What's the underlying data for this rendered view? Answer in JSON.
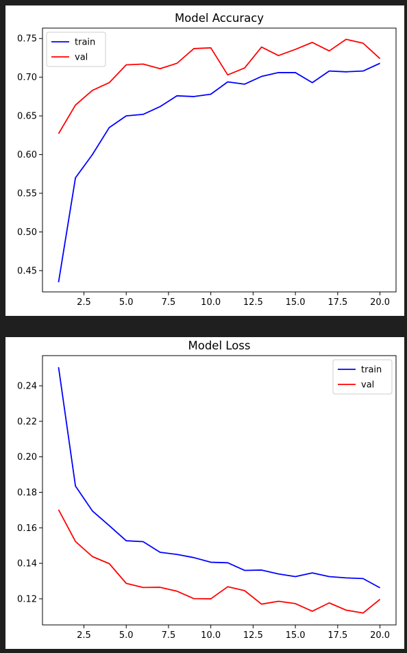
{
  "chart_data": [
    {
      "type": "line",
      "title": "Model Accuracy",
      "xlabel": "",
      "ylabel": "",
      "xlim": [
        0.05,
        20.95
      ],
      "ylim": [
        0.4225,
        0.7635
      ],
      "xticks": [
        2.5,
        5.0,
        7.5,
        10.0,
        12.5,
        15.0,
        17.5,
        20.0
      ],
      "yticks": [
        0.45,
        0.5,
        0.55,
        0.6,
        0.65,
        0.7,
        0.75
      ],
      "legend": "top-left",
      "grid": false,
      "x": [
        1,
        2,
        3,
        4,
        5,
        6,
        7,
        8,
        9,
        10,
        11,
        12,
        13,
        14,
        15,
        16,
        17,
        18,
        19,
        20
      ],
      "series": [
        {
          "name": "train",
          "color": "#0000ff",
          "values": [
            0.435,
            0.57,
            0.6,
            0.635,
            0.65,
            0.652,
            0.662,
            0.676,
            0.675,
            0.678,
            0.694,
            0.691,
            0.701,
            0.706,
            0.706,
            0.693,
            0.708,
            0.707,
            0.708,
            0.718
          ]
        },
        {
          "name": "val",
          "color": "#ff0000",
          "values": [
            0.627,
            0.664,
            0.683,
            0.693,
            0.716,
            0.717,
            0.711,
            0.718,
            0.737,
            0.738,
            0.703,
            0.712,
            0.739,
            0.728,
            0.736,
            0.745,
            0.734,
            0.749,
            0.744,
            0.724
          ]
        }
      ]
    },
    {
      "type": "line",
      "title": "Model Loss",
      "xlabel": "",
      "ylabel": "",
      "xlim": [
        0.05,
        20.95
      ],
      "ylim": [
        0.1053,
        0.257
      ],
      "xticks": [
        2.5,
        5.0,
        7.5,
        10.0,
        12.5,
        15.0,
        17.5,
        20.0
      ],
      "yticks": [
        0.12,
        0.14,
        0.16,
        0.18,
        0.2,
        0.22,
        0.24
      ],
      "legend": "top-right",
      "grid": false,
      "x": [
        1,
        2,
        3,
        4,
        5,
        6,
        7,
        8,
        9,
        10,
        11,
        12,
        13,
        14,
        15,
        16,
        17,
        18,
        19,
        20
      ],
      "series": [
        {
          "name": "train",
          "color": "#0000ff",
          "values": [
            0.2505,
            0.1835,
            0.1695,
            0.1612,
            0.1527,
            0.1522,
            0.1462,
            0.145,
            0.1432,
            0.1406,
            0.1403,
            0.136,
            0.1362,
            0.134,
            0.1325,
            0.1346,
            0.1325,
            0.1318,
            0.1314,
            0.1262
          ]
        },
        {
          "name": "val",
          "color": "#ff0000",
          "values": [
            0.1702,
            0.1523,
            0.1438,
            0.1398,
            0.1287,
            0.1264,
            0.1265,
            0.1243,
            0.1201,
            0.12,
            0.1268,
            0.1246,
            0.117,
            0.1186,
            0.1173,
            0.113,
            0.1177,
            0.1136,
            0.112,
            0.1197
          ]
        }
      ]
    }
  ]
}
